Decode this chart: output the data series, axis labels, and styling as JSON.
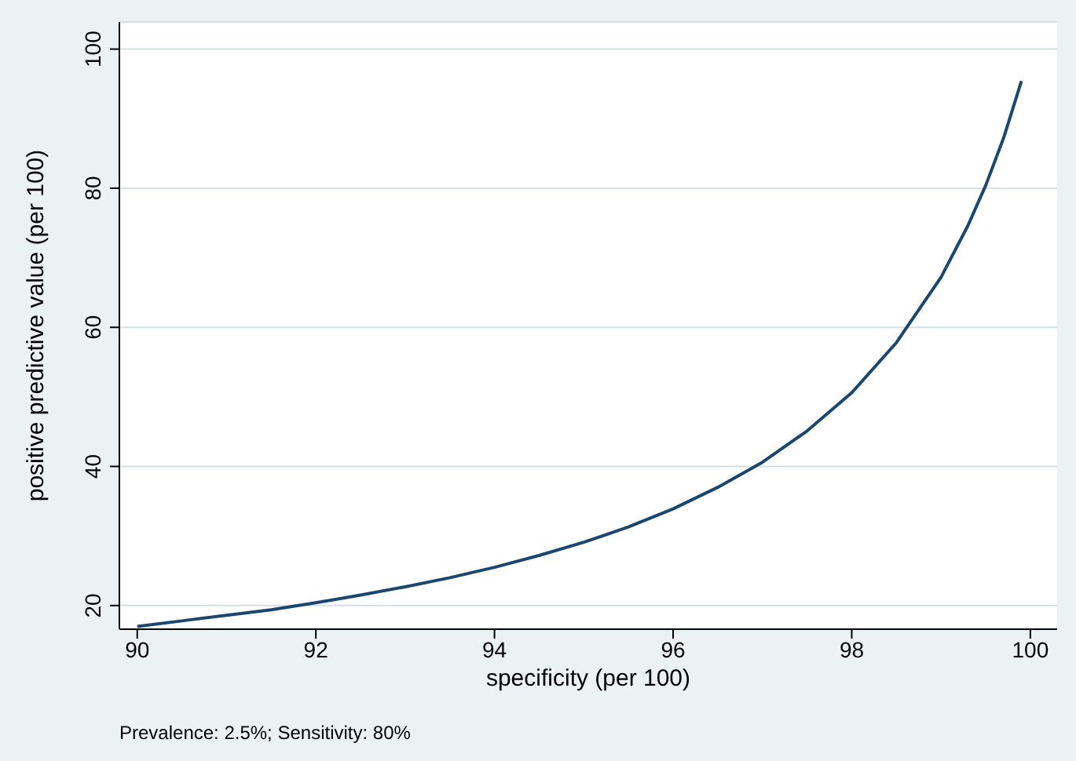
{
  "chart_data": {
    "type": "line",
    "xlabel": "specificity (per 100)",
    "ylabel": "positive predictive value (per 100)",
    "annotations": [
      "Prevalence: 2.5%; Sensitivity: 80%"
    ],
    "x": [
      90,
      90.5,
      91,
      91.5,
      92,
      92.5,
      93,
      93.5,
      94,
      94.5,
      95,
      95.5,
      96,
      96.5,
      97,
      97.5,
      98,
      98.5,
      99,
      99.3,
      99.5,
      99.7,
      99.9
    ],
    "series": [
      {
        "color": "#1a476f",
        "values": [
          17.0,
          17.8,
          18.6,
          19.4,
          20.4,
          21.5,
          22.7,
          24.0,
          25.5,
          27.2,
          29.1,
          31.3,
          33.9,
          37.0,
          40.6,
          45.1,
          50.6,
          57.8,
          67.2,
          74.6,
          80.4,
          87.2,
          95.4
        ]
      }
    ],
    "xlim": [
      89.8,
      100.3
    ],
    "xticks": [
      90,
      92,
      94,
      96,
      98,
      100
    ],
    "ylim": [
      16.6,
      103.9
    ],
    "yticks": [
      20,
      40,
      60,
      80,
      100
    ],
    "grid": "y",
    "legend": false,
    "marker": "none",
    "line_style": "solid"
  }
}
